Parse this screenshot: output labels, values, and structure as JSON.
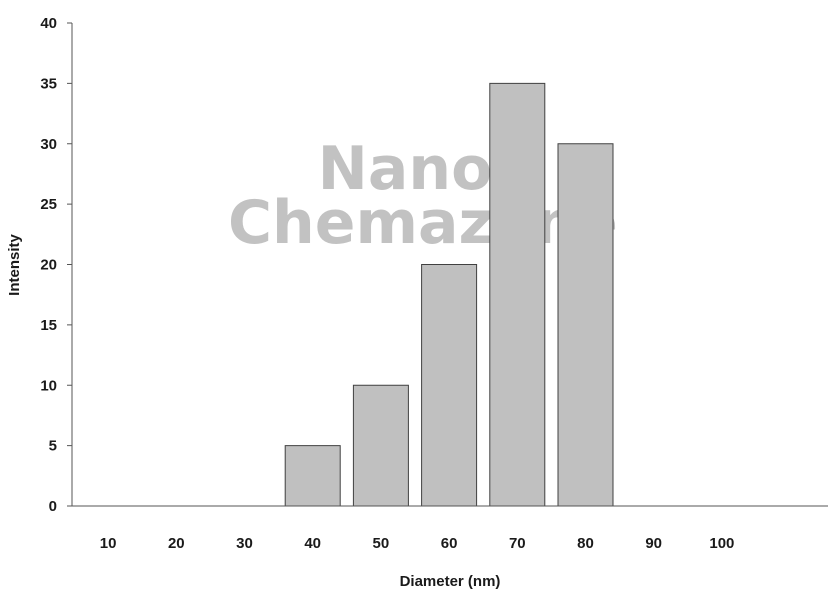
{
  "chart_data": {
    "type": "bar",
    "categories": [
      "10",
      "20",
      "30",
      "40",
      "50",
      "60",
      "70",
      "80",
      "90",
      "100"
    ],
    "values": [
      0,
      0,
      0,
      5,
      10,
      20,
      35,
      30,
      0,
      0
    ],
    "xlabel": "Diameter (nm)",
    "ylabel": "Intensity",
    "ylim": [
      0,
      40
    ],
    "yticks": [
      0,
      5,
      10,
      15,
      20,
      25,
      30,
      35,
      40
    ],
    "grid": false,
    "legend": "none",
    "bar_color": "#c0c0c0",
    "bar_edge_color": "#404040"
  },
  "watermark": {
    "line1": "Nano",
    "line2": "Chemazone"
  }
}
